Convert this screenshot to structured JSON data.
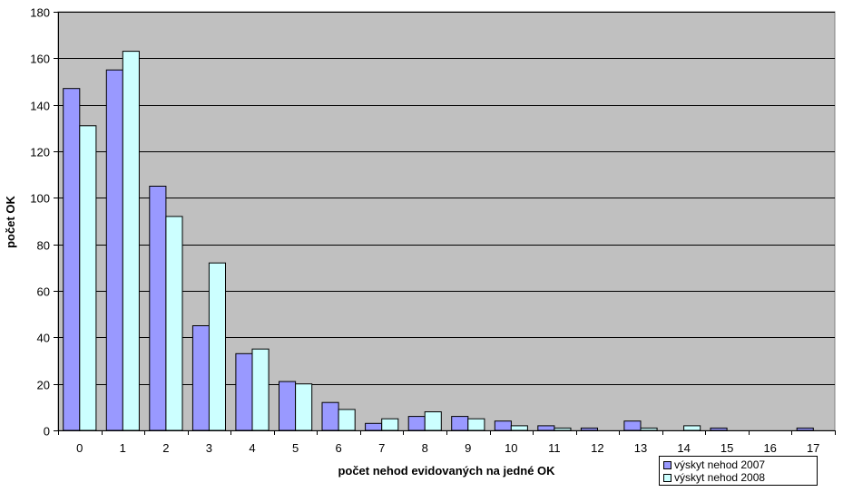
{
  "chart_data": {
    "type": "bar",
    "xlabel": "počet nehod evidovaných na jedné OK",
    "ylabel": "počet OK",
    "ylim": [
      0,
      180
    ],
    "yticks": [
      0,
      20,
      40,
      60,
      80,
      100,
      120,
      140,
      160,
      180
    ],
    "grid": true,
    "legend_position": "bottom-right",
    "plot_background": "#C0C0C0",
    "categories": [
      "0",
      "1",
      "2",
      "3",
      "4",
      "5",
      "6",
      "7",
      "8",
      "9",
      "10",
      "11",
      "12",
      "13",
      "14",
      "15",
      "16",
      "17"
    ],
    "series": [
      {
        "name": "výskyt nehod 2007",
        "color": "#9999FF",
        "values": [
          147,
          155,
          105,
          45,
          33,
          21,
          12,
          3,
          6,
          6,
          4,
          2,
          1,
          4,
          0,
          1,
          0,
          1
        ]
      },
      {
        "name": "výskyt nehod 2008",
        "color": "#CCFFFF",
        "values": [
          131,
          163,
          92,
          72,
          35,
          20,
          9,
          5,
          8,
          5,
          2,
          1,
          0,
          1,
          2,
          0,
          0,
          0
        ]
      }
    ]
  }
}
